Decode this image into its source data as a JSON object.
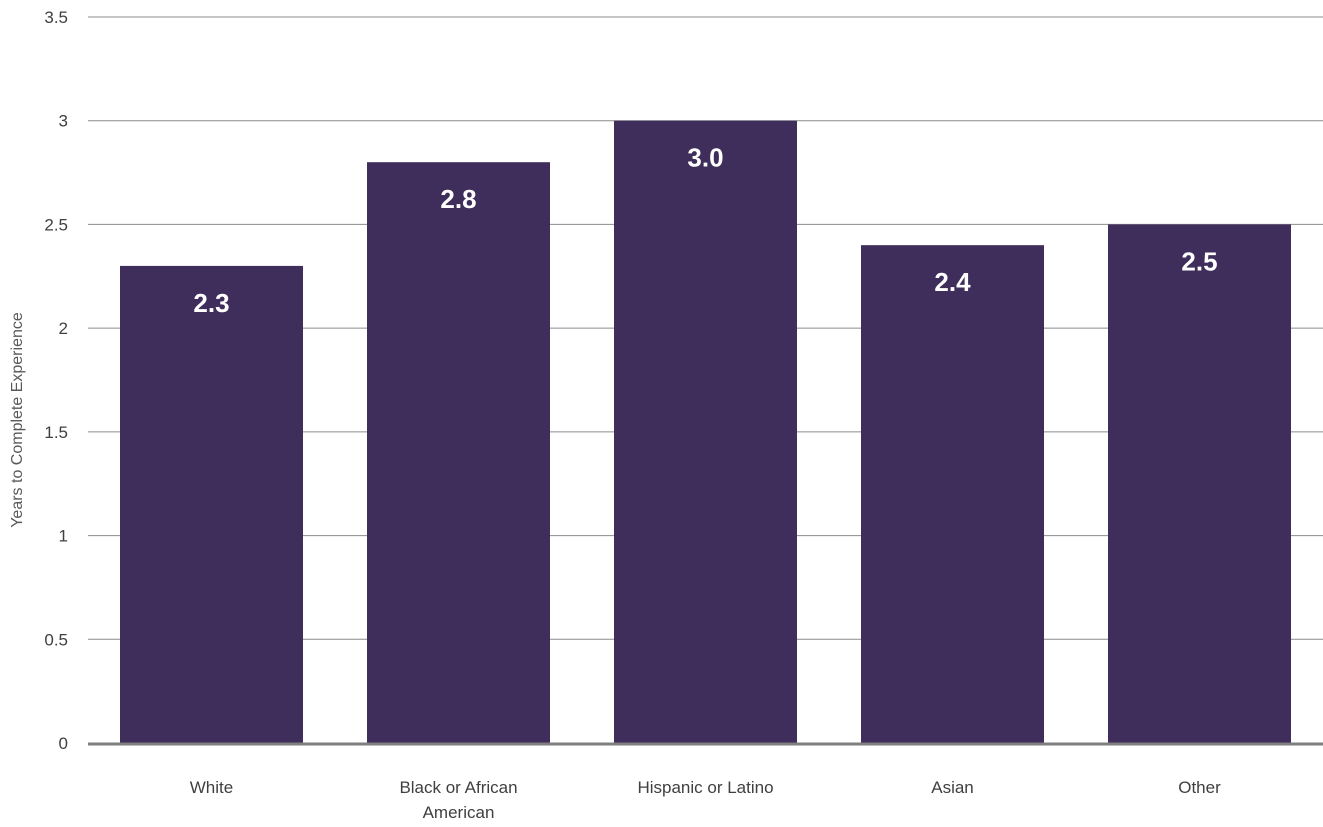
{
  "chart_data": {
    "type": "bar",
    "title": "",
    "xlabel": "",
    "ylabel": "Years to Complete Experience",
    "categories": [
      "White",
      "Black or African American",
      "Hispanic or Latino",
      "Asian",
      "Other"
    ],
    "category_lines": [
      [
        "White"
      ],
      [
        "Black or African",
        "American"
      ],
      [
        "Hispanic or Latino"
      ],
      [
        "Asian"
      ],
      [
        "Other"
      ]
    ],
    "values": [
      2.3,
      2.8,
      3.0,
      2.4,
      2.5
    ],
    "data_labels": [
      "2.3",
      "2.8",
      "3.0",
      "2.4",
      "2.5"
    ],
    "ylim": [
      0,
      3.5
    ],
    "yticks": [
      0,
      0.5,
      1,
      1.5,
      2,
      2.5,
      3,
      3.5
    ],
    "ytick_labels": [
      "0",
      "0.5",
      "1",
      "1.5",
      "2",
      "2.5",
      "3",
      "3.5"
    ],
    "grid": true,
    "legend": "none",
    "colors": {
      "bar": "#3f2d5b",
      "grid": "#8c8c8c",
      "axis": "#7f7f7f",
      "data_label": "#ffffff"
    }
  }
}
